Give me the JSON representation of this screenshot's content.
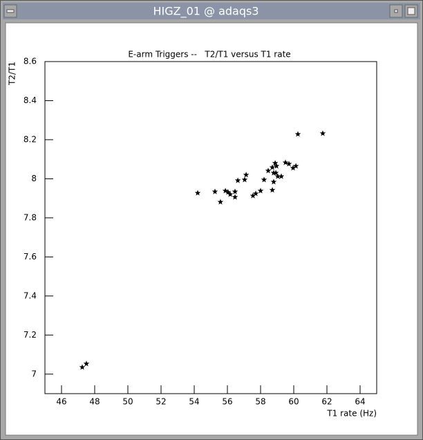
{
  "window": {
    "title": "HIGZ_01 @ adaqs3"
  },
  "chart_data": {
    "type": "scatter",
    "title": "E-arm Triggers --   T2/T1 versus T1 rate",
    "x_label": "T1 rate (Hz)",
    "y_label": "T2/T1",
    "color": "#000000",
    "xlim": [
      45,
      65
    ],
    "ylim": [
      6.9,
      8.6
    ],
    "xticks": [
      46,
      48,
      50,
      52,
      54,
      56,
      58,
      60,
      62,
      64
    ],
    "yticks": [
      7,
      7.2,
      7.4,
      7.6,
      7.8,
      8,
      8.2,
      8.4,
      8.6
    ],
    "x": [
      47.25,
      47.5,
      54.21,
      55.25,
      55.58,
      55.88,
      56.04,
      56.17,
      56.46,
      56.46,
      56.63,
      57.04,
      57.13,
      57.54,
      57.71,
      58.0,
      58.21,
      58.46,
      58.71,
      58.71,
      58.79,
      58.79,
      58.88,
      58.92,
      58.96,
      59.04,
      59.25,
      59.5,
      59.71,
      59.96,
      60.13,
      60.25,
      61.75
    ],
    "y": [
      7.035,
      7.053,
      7.927,
      7.934,
      7.881,
      7.938,
      7.931,
      7.92,
      7.934,
      7.906,
      7.991,
      7.995,
      8.02,
      7.913,
      7.924,
      7.938,
      7.995,
      8.041,
      7.942,
      8.058,
      7.984,
      8.03,
      8.08,
      8.03,
      8.065,
      8.012,
      8.012,
      8.083,
      8.076,
      8.055,
      8.065,
      8.228,
      8.232
    ]
  }
}
